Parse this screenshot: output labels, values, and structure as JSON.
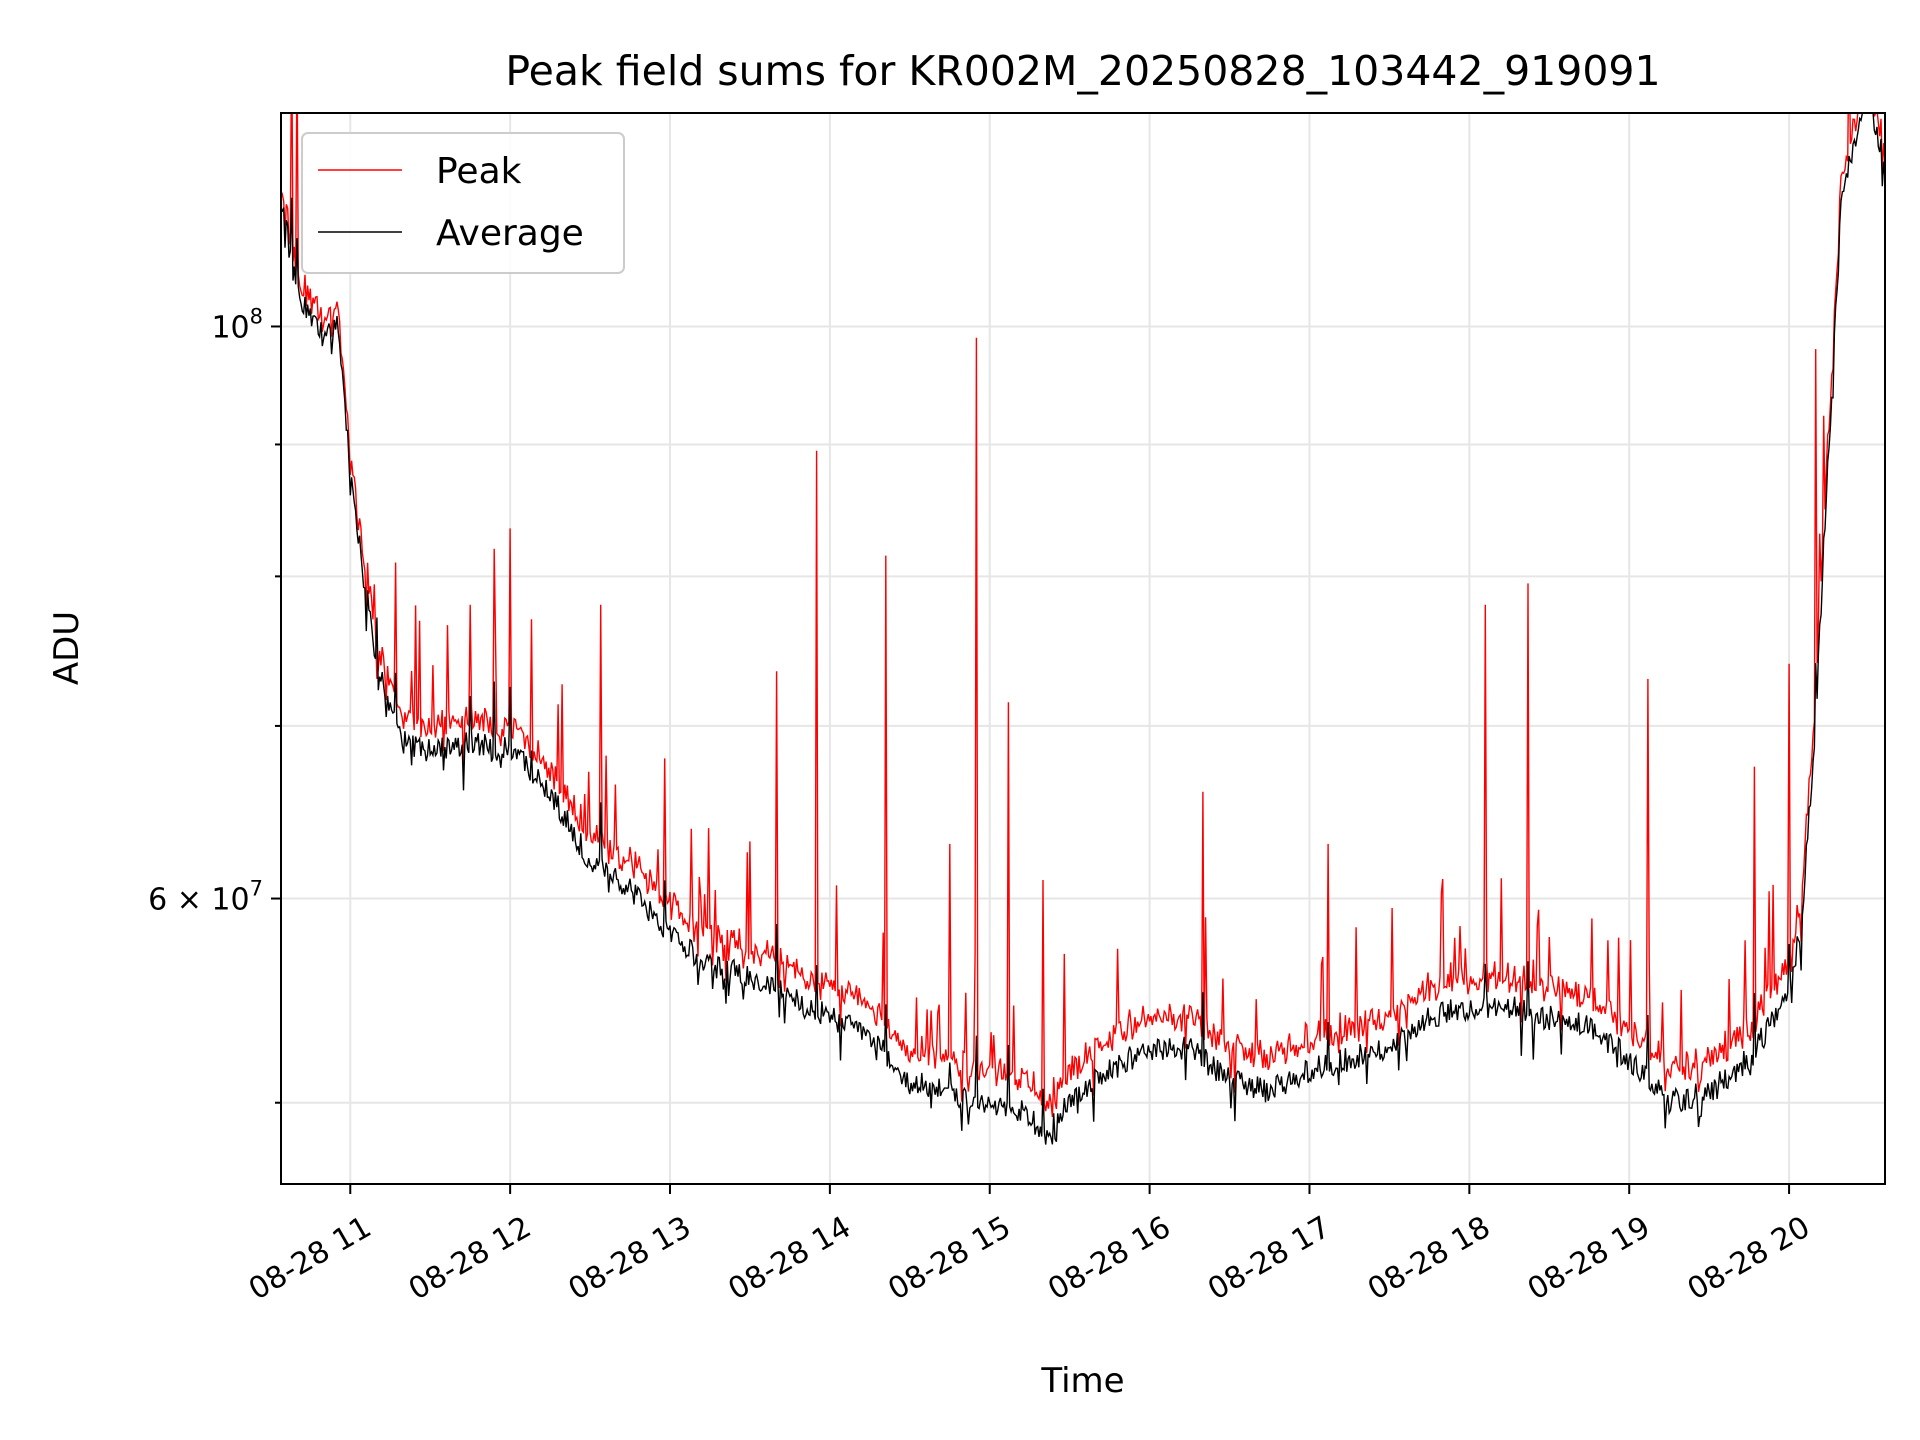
{
  "chart_data": {
    "type": "line",
    "title": "Peak field sums for KR002M_20250828_103442_919091",
    "xlabel": "Time",
    "ylabel": "ADU",
    "y_scale": "log",
    "xlim": [
      "2025-08-28T10:34",
      "2025-08-28T20:36"
    ],
    "ylim": [
      46500000,
      121000000
    ],
    "grid": true,
    "legend_position": "top-left",
    "x_tick_labels": [
      "08-28 11",
      "08-28 12",
      "08-28 13",
      "08-28 14",
      "08-28 15",
      "08-28 16",
      "08-28 17",
      "08-28 18",
      "08-28 19",
      "08-28 20"
    ],
    "y_tick_labels": [
      {
        "value": 100000000,
        "base": "10",
        "exp": "8"
      },
      {
        "value": 60000000,
        "mant": "6 × 10",
        "exp": "7"
      }
    ],
    "y_minor_ticks": [
      50000000,
      70000000,
      80000000,
      90000000
    ],
    "series": [
      {
        "name": "Peak",
        "color": "#ff0000",
        "kind": "peak"
      },
      {
        "name": "Average",
        "color": "#000000",
        "kind": "average"
      }
    ],
    "x": [
      "10:34",
      "10:40",
      "10:50",
      "10:55",
      "11:00",
      "11:05",
      "11:10",
      "11:20",
      "11:30",
      "11:45",
      "12:00",
      "12:15",
      "12:30",
      "12:45",
      "13:00",
      "13:15",
      "13:30",
      "13:45",
      "14:00",
      "14:15",
      "14:30",
      "14:45",
      "15:00",
      "15:15",
      "15:20",
      "15:30",
      "15:45",
      "16:00",
      "16:15",
      "16:30",
      "16:45",
      "17:00",
      "17:15",
      "17:30",
      "17:45",
      "18:00",
      "18:15",
      "18:30",
      "18:45",
      "19:00",
      "19:15",
      "19:30",
      "19:45",
      "20:00",
      "20:05",
      "20:10",
      "20:15",
      "20:20",
      "20:25",
      "20:30",
      "20:36"
    ],
    "average_values": [
      112000000,
      103000000,
      99000000,
      100000000,
      88000000,
      80000000,
      74000000,
      69000000,
      68500000,
      69000000,
      68500000,
      66000000,
      62000000,
      60500000,
      58000000,
      56500000,
      56000000,
      55000000,
      54000000,
      53000000,
      51000000,
      50500000,
      50000000,
      49500000,
      48500000,
      50000000,
      51500000,
      52500000,
      52500000,
      51000000,
      50500000,
      51500000,
      52000000,
      52500000,
      54000000,
      54500000,
      54500000,
      54000000,
      53500000,
      52000000,
      50000000,
      50500000,
      52000000,
      55000000,
      59000000,
      70000000,
      90000000,
      113000000,
      118000000,
      123000000,
      115000000
    ],
    "peak_values": [
      113000000,
      104500000,
      100500000,
      101500000,
      89500000,
      81500000,
      75500000,
      70500000,
      70000000,
      70500000,
      70000000,
      67500000,
      63500000,
      62000000,
      59500000,
      58000000,
      57500000,
      56500000,
      55500000,
      54500000,
      52500000,
      52000000,
      51500000,
      51000000,
      50000000,
      51500000,
      53000000,
      54000000,
      54000000,
      52500000,
      52000000,
      53000000,
      53500000,
      54000000,
      55500000,
      56000000,
      56000000,
      55500000,
      55000000,
      53500000,
      51500000,
      52000000,
      53500000,
      56500000,
      60500000,
      72000000,
      92000000,
      115000000,
      120000000,
      125000000,
      117000000
    ],
    "peak_spikes": [
      {
        "x": "10:38",
        "y": 130000000
      },
      {
        "x": "10:40",
        "y": 128000000
      },
      {
        "x": "11:10",
        "y": 73000000
      },
      {
        "x": "11:17",
        "y": 81000000
      },
      {
        "x": "11:45",
        "y": 78000000
      },
      {
        "x": "11:54",
        "y": 82000000
      },
      {
        "x": "12:00",
        "y": 83500000
      },
      {
        "x": "12:08",
        "y": 77000000
      },
      {
        "x": "12:34",
        "y": 78000000
      },
      {
        "x": "12:58",
        "y": 68000000
      },
      {
        "x": "13:40",
        "y": 73500000
      },
      {
        "x": "13:55",
        "y": 89500000
      },
      {
        "x": "14:21",
        "y": 81500000
      },
      {
        "x": "14:45",
        "y": 63000000
      },
      {
        "x": "14:55",
        "y": 99000000
      },
      {
        "x": "15:07",
        "y": 71500000
      },
      {
        "x": "15:20",
        "y": 61000000
      },
      {
        "x": "16:20",
        "y": 66000000
      },
      {
        "x": "17:07",
        "y": 63000000
      },
      {
        "x": "18:06",
        "y": 78000000
      },
      {
        "x": "18:22",
        "y": 79500000
      },
      {
        "x": "19:07",
        "y": 73000000
      },
      {
        "x": "19:47",
        "y": 67500000
      },
      {
        "x": "20:00",
        "y": 74000000
      },
      {
        "x": "20:10",
        "y": 98000000
      }
    ]
  }
}
